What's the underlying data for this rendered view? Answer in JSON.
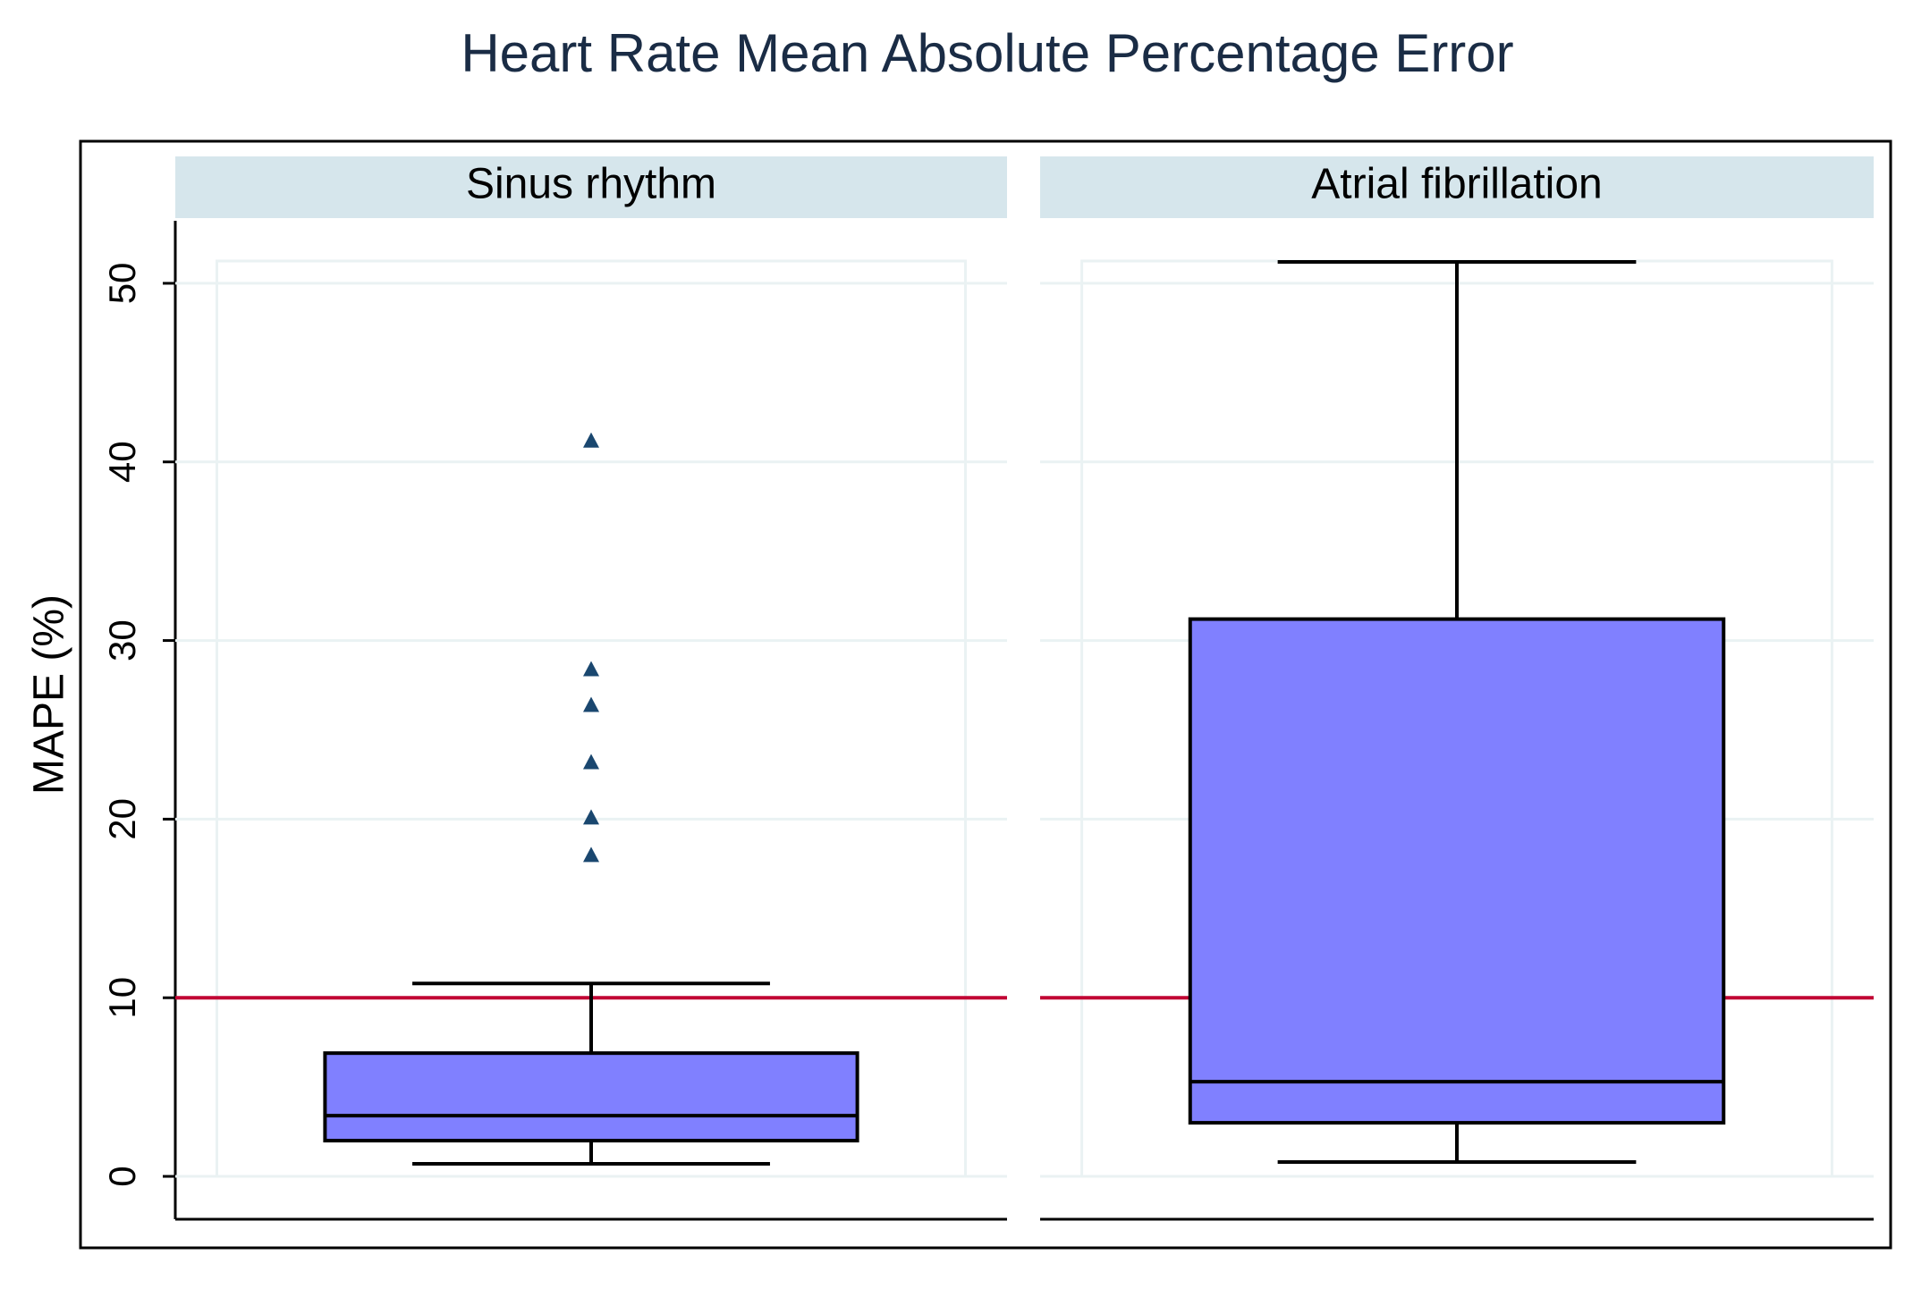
{
  "chart_data": {
    "type": "box",
    "title": "Heart Rate Mean Absolute Percentage Error",
    "y_label": "MAPE (%)",
    "ylim": [
      -2.4,
      53.5
    ],
    "yticks": [
      0,
      10,
      20,
      30,
      40,
      50
    ],
    "grid": true,
    "reference_line": {
      "value": 10,
      "color": "#c10534"
    },
    "box_color": "#8080ff",
    "outlier_color": "#1a476f",
    "panels": [
      {
        "name": "Sinus rhythm",
        "whisker_low": 0.7,
        "q1": 2,
        "median": 3.4,
        "q3": 6.9,
        "whisker_high": 10.8,
        "outliers": [
          18,
          20.1,
          23.2,
          26.4,
          28.4,
          41.2
        ]
      },
      {
        "name": "Atrial fibrillation",
        "whisker_low": 0.8,
        "q1": 3,
        "median": 5.3,
        "q3": 31.2,
        "whisker_high": 51.2,
        "outliers": []
      }
    ]
  }
}
